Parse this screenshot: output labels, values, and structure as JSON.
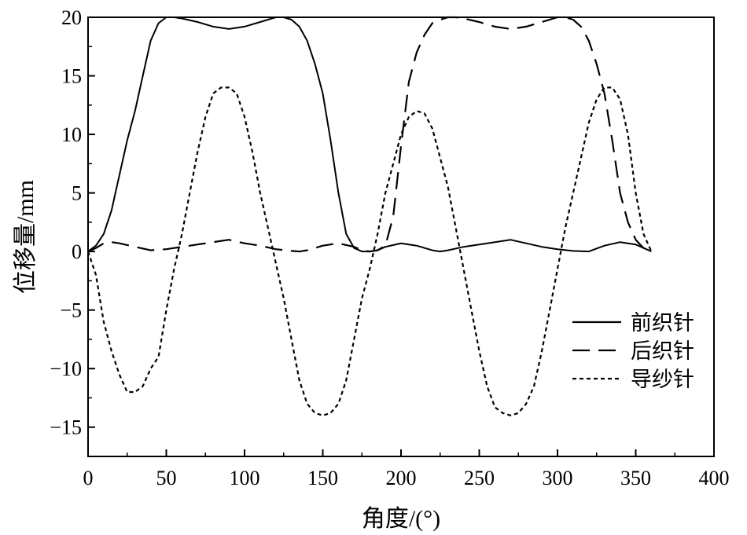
{
  "chart_data": {
    "type": "line",
    "xlabel": "角度/(°)",
    "ylabel": "位移量/mm",
    "xlim": [
      0,
      400
    ],
    "ylim": [
      -17.5,
      20
    ],
    "xticks": [
      0,
      50,
      100,
      150,
      200,
      250,
      300,
      350,
      400
    ],
    "yticks": [
      -15,
      -10,
      -5,
      0,
      5,
      10,
      15,
      20
    ],
    "xtick_labels": [
      "0",
      "50",
      "100",
      "150",
      "200",
      "250",
      "300",
      "350",
      "400"
    ],
    "ytick_labels": [
      "−15",
      "−10",
      "−5",
      "0",
      "5",
      "10",
      "15",
      "20"
    ],
    "grid": false,
    "legend_position": "right",
    "series": [
      {
        "name": "前织针",
        "style": "solid",
        "color": "#000000",
        "x": [
          0,
          5,
          10,
          15,
          20,
          25,
          30,
          35,
          40,
          45,
          50,
          55,
          60,
          70,
          80,
          90,
          100,
          110,
          120,
          125,
          130,
          135,
          140,
          145,
          150,
          155,
          160,
          165,
          170,
          175,
          180,
          185,
          190,
          200,
          210,
          220,
          225,
          230,
          240,
          250,
          260,
          270,
          280,
          290,
          300,
          310,
          320,
          330,
          340,
          350,
          360
        ],
        "y": [
          0,
          0.5,
          1.5,
          3.5,
          6.5,
          9.5,
          12,
          15,
          18,
          19.5,
          20,
          20,
          19.9,
          19.6,
          19.2,
          19,
          19.2,
          19.6,
          20,
          20,
          19.8,
          19.2,
          18,
          16,
          13.5,
          9.5,
          5,
          1.5,
          0.3,
          0,
          0,
          0.1,
          0.4,
          0.7,
          0.5,
          0.1,
          0,
          0.1,
          0.4,
          0.6,
          0.8,
          1,
          0.7,
          0.4,
          0.2,
          0.05,
          0,
          0.5,
          0.8,
          0.6,
          0
        ]
      },
      {
        "name": "后织针",
        "style": "dashed",
        "color": "#000000",
        "x": [
          0,
          5,
          10,
          15,
          20,
          30,
          40,
          50,
          60,
          70,
          80,
          90,
          100,
          110,
          120,
          130,
          135,
          140,
          150,
          160,
          170,
          175,
          180,
          185,
          190,
          195,
          200,
          205,
          210,
          215,
          220,
          225,
          230,
          235,
          240,
          250,
          260,
          270,
          280,
          290,
          300,
          305,
          310,
          315,
          320,
          325,
          330,
          335,
          340,
          345,
          350,
          355,
          360
        ],
        "y": [
          0,
          0.3,
          0.7,
          0.8,
          0.7,
          0.4,
          0.1,
          0.2,
          0.4,
          0.6,
          0.8,
          1,
          0.7,
          0.5,
          0.2,
          0.05,
          0,
          0.1,
          0.5,
          0.7,
          0.4,
          0.1,
          0,
          0.1,
          0.5,
          3,
          9,
          14.5,
          17,
          18.5,
          19.5,
          19.8,
          20,
          20,
          19.9,
          19.6,
          19.2,
          19,
          19.2,
          19.6,
          20,
          20,
          19.8,
          19.2,
          18,
          16,
          13.5,
          9.5,
          5,
          2.5,
          1,
          0.3,
          0
        ]
      },
      {
        "name": "导纱针",
        "style": "dotted",
        "color": "#000000",
        "x": [
          0,
          5,
          10,
          15,
          20,
          25,
          30,
          35,
          40,
          45,
          50,
          55,
          60,
          65,
          70,
          75,
          80,
          85,
          90,
          95,
          100,
          105,
          110,
          115,
          120,
          125,
          130,
          135,
          140,
          145,
          150,
          155,
          160,
          165,
          170,
          175,
          180,
          185,
          190,
          195,
          200,
          205,
          210,
          215,
          220,
          225,
          230,
          235,
          240,
          245,
          250,
          255,
          260,
          265,
          270,
          275,
          280,
          285,
          290,
          295,
          300,
          305,
          310,
          315,
          320,
          325,
          330,
          335,
          340,
          345,
          350,
          355,
          360
        ],
        "y": [
          0,
          -2,
          -6,
          -8.5,
          -10.5,
          -12,
          -12,
          -11.5,
          -10,
          -9,
          -5,
          -1.5,
          1.5,
          5,
          8.5,
          11.5,
          13.5,
          14,
          14,
          13.5,
          11.5,
          8.5,
          5,
          2,
          -1,
          -4,
          -7.5,
          -11,
          -13,
          -13.8,
          -14,
          -13.8,
          -13,
          -11,
          -7.5,
          -4,
          -1.5,
          1.5,
          5,
          7.5,
          10,
          11.5,
          12,
          11.8,
          10.5,
          8,
          5.5,
          2,
          -1.5,
          -5,
          -8.5,
          -11.5,
          -13.3,
          -13.8,
          -14,
          -13.8,
          -13,
          -11.5,
          -8.5,
          -5,
          -1.5,
          2,
          5,
          8,
          11,
          13,
          14,
          14,
          13,
          10,
          5,
          1.5,
          0
        ]
      }
    ]
  }
}
